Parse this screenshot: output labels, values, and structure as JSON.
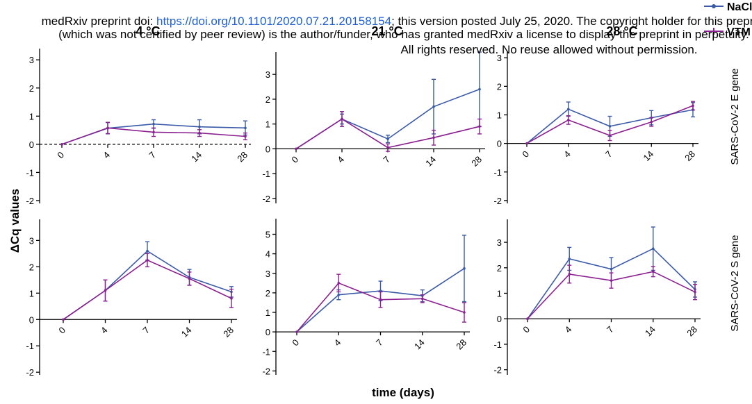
{
  "notice": {
    "line1_pre": "medRxiv preprint doi: ",
    "line1_link": "https://doi.org/10.1101/2020.07.21.20158154",
    "line1_post": "; this version posted July 25, 2020. The copyright holder for this preprint",
    "line2": "(which was not certified by peer review) is the author/funder, who has granted medRxiv a license to display the preprint in perpetuity.",
    "line3": "All rights reserved. No reuse allowed without permission."
  },
  "figure": {
    "ylabel": "ΔCq values",
    "xlabel": "time (days)",
    "columns": [
      "4 °C",
      "21 °C",
      "28 °C"
    ],
    "rows": [
      "SARS-CoV-2 E gene",
      "SARS-CoV-2 S gene"
    ],
    "legend": [
      {
        "label": "NaCl",
        "color": "#3a5aa8"
      },
      {
        "label": "VTM",
        "color": "#8b2090"
      }
    ]
  },
  "chart_data": [
    {
      "type": "line",
      "row": "SARS-CoV-2 E gene",
      "column": "4 °C",
      "categories": [
        "0",
        "4",
        "7",
        "14",
        "28"
      ],
      "yticks": [
        -2,
        -1,
        0,
        1,
        2,
        3
      ],
      "ylim": [
        -2.1,
        3.4
      ],
      "zero_line_dashed": true,
      "series": [
        {
          "name": "NaCl",
          "values": [
            0,
            0.57,
            0.72,
            0.62,
            0.58
          ],
          "err": [
            0,
            0.2,
            0.15,
            0.25,
            0.25
          ]
        },
        {
          "name": "VTM",
          "values": [
            0,
            0.58,
            0.43,
            0.4,
            0.28
          ],
          "err": [
            0,
            0.2,
            0.15,
            0.12,
            0.12
          ]
        }
      ]
    },
    {
      "type": "line",
      "row": "SARS-CoV-2 E gene",
      "column": "21 °C",
      "categories": [
        "0",
        "4",
        "7",
        "14",
        "28"
      ],
      "yticks": [
        -2,
        -1,
        0,
        1,
        2,
        3
      ],
      "ylim": [
        -2.2,
        3.9
      ],
      "series": [
        {
          "name": "NaCl",
          "values": [
            0,
            1.2,
            0.4,
            1.7,
            2.4
          ],
          "err": [
            0,
            0.2,
            0.15,
            1.1,
            1.5
          ]
        },
        {
          "name": "VTM",
          "values": [
            0,
            1.2,
            0.05,
            0.45,
            0.9
          ],
          "err": [
            0,
            0.3,
            0.15,
            0.3,
            0.3
          ]
        }
      ]
    },
    {
      "type": "line",
      "row": "SARS-CoV-2 E gene",
      "column": "28 °C",
      "categories": [
        "0",
        "4",
        "7",
        "14",
        "28"
      ],
      "yticks": [
        -2,
        -1,
        0,
        1,
        2,
        3
      ],
      "ylim": [
        -2.1,
        3.2
      ],
      "series": [
        {
          "name": "NaCl",
          "values": [
            0,
            1.2,
            0.6,
            0.9,
            1.18
          ],
          "err": [
            0,
            0.25,
            0.35,
            0.25,
            0.25
          ]
        },
        {
          "name": "VTM",
          "values": [
            0,
            0.82,
            0.28,
            0.75,
            1.32
          ],
          "err": [
            0,
            0.15,
            0.18,
            0.15,
            0.15
          ]
        }
      ]
    },
    {
      "type": "line",
      "row": "SARS-CoV-2 S gene",
      "column": "4 °C",
      "categories": [
        "0",
        "4",
        "7",
        "14",
        "28"
      ],
      "yticks": [
        -2,
        -1,
        0,
        1,
        2,
        3
      ],
      "ylim": [
        -2.1,
        3.8
      ],
      "series": [
        {
          "name": "NaCl",
          "values": [
            0,
            1.1,
            2.6,
            1.6,
            1.05
          ],
          "err": [
            0,
            0.4,
            0.35,
            0.3,
            0.2
          ]
        },
        {
          "name": "VTM",
          "values": [
            0,
            1.1,
            2.25,
            1.55,
            0.8
          ],
          "err": [
            0,
            0.4,
            0.25,
            0.25,
            0.35
          ]
        }
      ]
    },
    {
      "type": "line",
      "row": "SARS-CoV-2 S gene",
      "column": "21 °C",
      "categories": [
        "0",
        "4",
        "7",
        "14",
        "28"
      ],
      "yticks": [
        -2,
        -1,
        0,
        1,
        2,
        3,
        4,
        5
      ],
      "ylim": [
        -2.2,
        5.8
      ],
      "series": [
        {
          "name": "NaCl",
          "values": [
            0,
            1.9,
            2.1,
            1.85,
            3.25
          ],
          "err": [
            0,
            0.25,
            0.5,
            0.3,
            1.7
          ]
        },
        {
          "name": "VTM",
          "values": [
            0,
            2.5,
            1.65,
            1.7,
            1.0
          ],
          "err": [
            0,
            0.45,
            0.4,
            0.2,
            0.5
          ]
        }
      ]
    },
    {
      "type": "line",
      "row": "SARS-CoV-2 S gene",
      "column": "28 °C",
      "categories": [
        "0",
        "4",
        "7",
        "14",
        "28"
      ],
      "yticks": [
        -2,
        -1,
        0,
        1,
        2,
        3
      ],
      "ylim": [
        -2.2,
        3.9
      ],
      "series": [
        {
          "name": "NaCl",
          "values": [
            0,
            2.35,
            1.95,
            2.75,
            1.15
          ],
          "err": [
            0,
            0.45,
            0.45,
            0.85,
            0.3
          ]
        },
        {
          "name": "VTM",
          "values": [
            0,
            1.75,
            1.5,
            1.85,
            1.05
          ],
          "err": [
            0,
            0.35,
            0.3,
            0.2,
            0.3
          ]
        }
      ]
    }
  ]
}
